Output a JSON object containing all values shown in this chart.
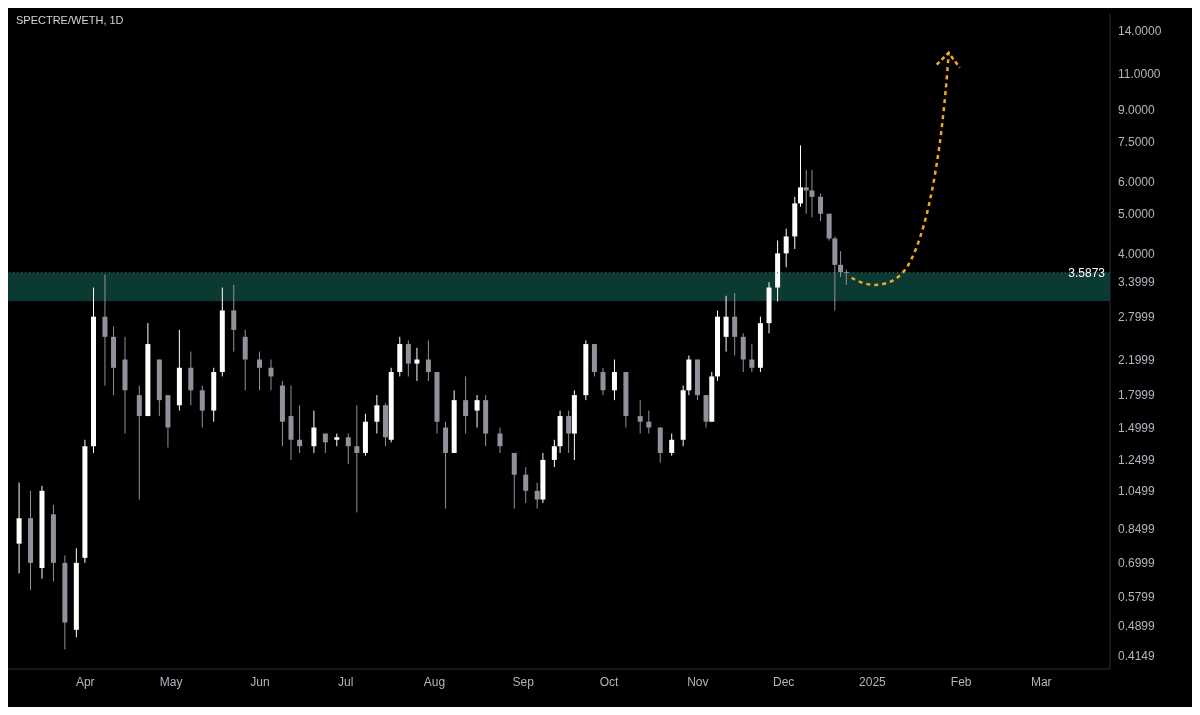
{
  "chart_data": {
    "type": "candlestick",
    "title": "SPECTRE/WETH, 1D",
    "log": "y",
    "grid": false,
    "colors": [
      "#ffffff",
      "#8f929a",
      "#ffffff",
      "#8f929a",
      "#8f929a",
      "#ffffff",
      "#ffffff",
      "#ffffff",
      "#8f929a",
      "#8f929a",
      "#8f929a",
      "#8f929a",
      "#ffffff",
      "#8f929a",
      "#8f929a",
      "#ffffff",
      "#8f929a",
      "#8f929a",
      "#ffffff",
      "#ffffff",
      "#8f929a",
      "#8f929a",
      "#8f929a",
      "#8f929a",
      "#8f929a",
      "#8f929a",
      "#8f929a",
      "#ffffff",
      "#8f929a",
      "#ffffff",
      "#8f929a",
      "#8f929a",
      "#ffffff",
      "#ffffff",
      "#8f929a",
      "#ffffff",
      "#ffffff",
      "#8f929a",
      "#ffffff",
      "#8f929a",
      "#8f929a",
      "#8f929a",
      "#ffffff",
      "#8f929a",
      "#ffffff",
      "#8f929a",
      "#8f929a",
      "#8f929a",
      "#8f929a",
      "#8f929a",
      "#ffffff",
      "#ffffff",
      "#ffffff",
      "#8f929a",
      "#ffffff",
      "#ffffff",
      "#8f929a",
      "#8f929a",
      "#ffffff",
      "#8f929a",
      "#8f929a",
      "#8f929a",
      "#8f929a",
      "#ffffff",
      "#ffffff",
      "#ffffff",
      "#8f929a",
      "#8f929a",
      "#ffffff",
      "#ffffff",
      "#ffffff",
      "#8f929a",
      "#8f929a",
      "#8f929a",
      "#ffffff",
      "#ffffff",
      "#ffffff",
      "#ffffff",
      "#ffffff",
      "#ffffff",
      "#8f929a",
      "#8f929a",
      "#8f929a",
      "#8f929a",
      "#8f929a",
      "#8f929a",
      "#8f929a"
    ],
    "xlim": [
      "2024-03-05",
      "2025-03-25"
    ],
    "ylim": [
      0.385,
      15.4
    ],
    "xticks": [
      {
        "value": "2024-04-01",
        "label": "Apr"
      },
      {
        "value": "2024-05-01",
        "label": "May"
      },
      {
        "value": "2024-06-01",
        "label": "Jun"
      },
      {
        "value": "2024-07-01",
        "label": "Jul"
      },
      {
        "value": "2024-08-01",
        "label": "Aug"
      },
      {
        "value": "2024-09-01",
        "label": "Sep"
      },
      {
        "value": "2024-10-01",
        "label": "Oct"
      },
      {
        "value": "2024-11-01",
        "label": "Nov"
      },
      {
        "value": "2024-12-01",
        "label": "Dec"
      },
      {
        "value": "2025-01-01",
        "label": "2025"
      },
      {
        "value": "2025-02-01",
        "label": "Feb"
      },
      {
        "value": "2025-03-01",
        "label": "Mar"
      }
    ],
    "yticks": [
      0.4149,
      0.4899,
      0.5799,
      0.6999,
      0.8499,
      1.0499,
      1.2499,
      1.4999,
      1.7999,
      2.1999,
      2.7999,
      3.3999,
      {
        "value": 4,
        "label": "4.0000"
      },
      {
        "value": 5,
        "label": "5.0000"
      },
      {
        "value": 6,
        "label": "6.0000"
      },
      {
        "value": 7.5,
        "label": "7.5000"
      },
      {
        "value": 9,
        "label": "9.0000"
      },
      {
        "value": 11,
        "label": "11.0000"
      },
      {
        "value": 14,
        "label": "14.0000"
      }
    ],
    "bands": [
      {
        "axis": "y",
        "from": 3.06,
        "to": 3.59,
        "color": "#0b3a33"
      }
    ],
    "ref_lines": [
      {
        "axis": "y",
        "value": 3.5873,
        "label": "3.5873"
      }
    ],
    "x": [
      "2024-03-09",
      "2024-03-13",
      "2024-03-17",
      "2024-03-21",
      "2024-03-25",
      "2024-03-29",
      "2024-04-01",
      "2024-04-04",
      "2024-04-08",
      "2024-04-11",
      "2024-04-15",
      "2024-04-20",
      "2024-04-23",
      "2024-04-27",
      "2024-04-30",
      "2024-05-04",
      "2024-05-08",
      "2024-05-12",
      "2024-05-16",
      "2024-05-19",
      "2024-05-23",
      "2024-05-27",
      "2024-06-01",
      "2024-06-05",
      "2024-06-09",
      "2024-06-12",
      "2024-06-15",
      "2024-06-20",
      "2024-06-24",
      "2024-06-28",
      "2024-07-02",
      "2024-07-05",
      "2024-07-08",
      "2024-07-12",
      "2024-07-15",
      "2024-07-17",
      "2024-07-20",
      "2024-07-23",
      "2024-07-26",
      "2024-07-30",
      "2024-08-02",
      "2024-08-05",
      "2024-08-08",
      "2024-08-12",
      "2024-08-16",
      "2024-08-19",
      "2024-08-24",
      "2024-08-29",
      "2024-09-02",
      "2024-09-06",
      "2024-09-08",
      "2024-09-12",
      "2024-09-14",
      "2024-09-17",
      "2024-09-19",
      "2024-09-23",
      "2024-09-26",
      "2024-09-29",
      "2024-10-03",
      "2024-10-07",
      "2024-10-12",
      "2024-10-15",
      "2024-10-19",
      "2024-10-23",
      "2024-10-27",
      "2024-10-29",
      "2024-11-01",
      "2024-11-04",
      "2024-11-06",
      "2024-11-08",
      "2024-11-11",
      "2024-11-14",
      "2024-11-17",
      "2024-11-20",
      "2024-11-23",
      "2024-11-26",
      "2024-11-29",
      "2024-12-02",
      "2024-12-05",
      "2024-12-07",
      "2024-12-09",
      "2024-12-11",
      "2024-12-14",
      "2024-12-17",
      "2024-12-19",
      "2024-12-21",
      "2024-12-23"
    ],
    "ohlc": [
      [
        0.78,
        1.1,
        0.66,
        0.9
      ],
      [
        0.9,
        1.05,
        0.6,
        0.7
      ],
      [
        0.68,
        1.08,
        0.64,
        1.05
      ],
      [
        0.92,
        0.97,
        0.63,
        0.7
      ],
      [
        0.7,
        0.73,
        0.43,
        0.5
      ],
      [
        0.48,
        0.76,
        0.46,
        0.7
      ],
      [
        0.72,
        1.4,
        0.7,
        1.35
      ],
      [
        1.35,
        3.3,
        1.3,
        2.8
      ],
      [
        2.8,
        3.55,
        1.9,
        2.5
      ],
      [
        2.5,
        2.65,
        1.8,
        2.1
      ],
      [
        2.2,
        2.5,
        1.45,
        1.85
      ],
      [
        1.8,
        1.9,
        1.0,
        1.6
      ],
      [
        1.6,
        2.7,
        1.6,
        2.4
      ],
      [
        2.2,
        2.2,
        1.6,
        1.75
      ],
      [
        1.8,
        1.8,
        1.34,
        1.5
      ],
      [
        1.7,
        2.6,
        1.65,
        2.1
      ],
      [
        2.1,
        2.3,
        1.7,
        1.85
      ],
      [
        1.85,
        1.9,
        1.5,
        1.65
      ],
      [
        1.65,
        2.1,
        1.55,
        2.05
      ],
      [
        2.05,
        3.3,
        2.0,
        2.9
      ],
      [
        2.9,
        3.35,
        2.3,
        2.6
      ],
      [
        2.5,
        2.6,
        1.85,
        2.2
      ],
      [
        2.2,
        2.3,
        1.85,
        2.1
      ],
      [
        2.1,
        2.2,
        1.85,
        2.0
      ],
      [
        1.9,
        1.95,
        1.35,
        1.55
      ],
      [
        1.6,
        1.9,
        1.25,
        1.4
      ],
      [
        1.4,
        1.7,
        1.3,
        1.35
      ],
      [
        1.35,
        1.65,
        1.3,
        1.5
      ],
      [
        1.45,
        1.45,
        1.3,
        1.38
      ],
      [
        1.4,
        1.45,
        1.35,
        1.42
      ],
      [
        1.42,
        1.45,
        1.22,
        1.35
      ],
      [
        1.35,
        1.7,
        0.93,
        1.3
      ],
      [
        1.3,
        1.62,
        1.28,
        1.55
      ],
      [
        1.55,
        1.8,
        1.45,
        1.7
      ],
      [
        1.7,
        1.72,
        1.35,
        1.42
      ],
      [
        1.4,
        2.1,
        1.38,
        2.05
      ],
      [
        2.05,
        2.5,
        2.0,
        2.4
      ],
      [
        2.4,
        2.45,
        2.0,
        2.15
      ],
      [
        2.15,
        2.35,
        1.95,
        2.2
      ],
      [
        2.2,
        2.45,
        1.95,
        2.05
      ],
      [
        2.05,
        2.05,
        1.45,
        1.55
      ],
      [
        1.5,
        1.55,
        0.95,
        1.3
      ],
      [
        1.3,
        1.85,
        1.3,
        1.75
      ],
      [
        1.75,
        2.0,
        1.45,
        1.6
      ],
      [
        1.65,
        1.8,
        1.5,
        1.75
      ],
      [
        1.75,
        1.8,
        1.35,
        1.45
      ],
      [
        1.45,
        1.5,
        1.3,
        1.35
      ],
      [
        1.3,
        1.3,
        0.95,
        1.15
      ],
      [
        1.15,
        1.2,
        0.98,
        1.05
      ],
      [
        1.05,
        1.1,
        0.95,
        1.0
      ],
      [
        1.0,
        1.3,
        0.98,
        1.25
      ],
      [
        1.25,
        1.4,
        1.2,
        1.35
      ],
      [
        1.35,
        1.65,
        1.3,
        1.6
      ],
      [
        1.6,
        1.65,
        1.3,
        1.45
      ],
      [
        1.45,
        1.85,
        1.25,
        1.8
      ],
      [
        1.8,
        2.45,
        1.75,
        2.4
      ],
      [
        2.4,
        2.4,
        2.0,
        2.05
      ],
      [
        2.05,
        2.1,
        1.8,
        1.85
      ],
      [
        1.85,
        2.2,
        1.75,
        2.05
      ],
      [
        2.05,
        2.05,
        1.5,
        1.6
      ],
      [
        1.6,
        1.75,
        1.45,
        1.55
      ],
      [
        1.55,
        1.65,
        1.45,
        1.5
      ],
      [
        1.5,
        1.5,
        1.23,
        1.3
      ],
      [
        1.3,
        1.45,
        1.28,
        1.4
      ],
      [
        1.4,
        1.9,
        1.35,
        1.85
      ],
      [
        1.85,
        2.25,
        1.8,
        2.2
      ],
      [
        2.2,
        2.2,
        1.75,
        1.8
      ],
      [
        1.8,
        1.8,
        1.5,
        1.55
      ],
      [
        1.55,
        2.05,
        1.55,
        2.0
      ],
      [
        2.0,
        2.9,
        1.95,
        2.8
      ],
      [
        2.5,
        3.15,
        2.3,
        2.8
      ],
      [
        2.8,
        3.2,
        2.25,
        2.5
      ],
      [
        2.5,
        2.55,
        2.05,
        2.2
      ],
      [
        2.2,
        2.4,
        2.05,
        2.1
      ],
      [
        2.1,
        2.8,
        2.05,
        2.7
      ],
      [
        2.7,
        3.4,
        2.55,
        3.3
      ],
      [
        3.3,
        4.3,
        3.05,
        4.0
      ],
      [
        4.0,
        4.6,
        3.7,
        4.4
      ],
      [
        4.4,
        5.5,
        4.1,
        5.3
      ],
      [
        5.3,
        7.35,
        5.2,
        5.8
      ],
      [
        5.8,
        6.4,
        5.0,
        5.7
      ],
      [
        5.7,
        6.4,
        4.9,
        5.5
      ],
      [
        5.5,
        5.6,
        4.8,
        5.0
      ],
      [
        5.0,
        5.0,
        4.3,
        4.35
      ],
      [
        4.35,
        4.4,
        2.9,
        3.75
      ],
      [
        3.75,
        4.05,
        3.5,
        3.6
      ],
      [
        3.6,
        3.65,
        3.35,
        3.5873
      ]
    ]
  }
}
